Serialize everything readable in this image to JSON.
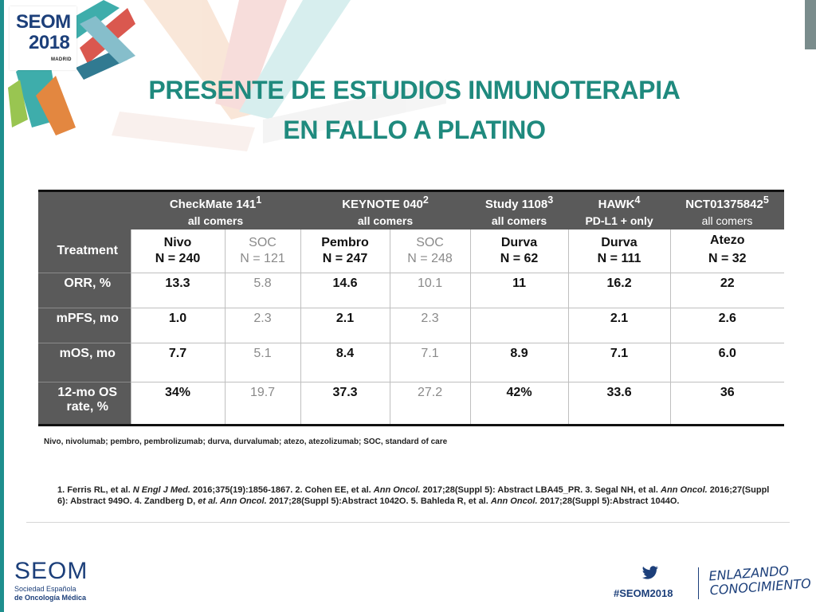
{
  "logo": {
    "brand": "SEOM",
    "year": "2018",
    "city": "MADRID"
  },
  "title": {
    "line1": "PRESENTE DE ESTUDIOS INMUNOTERAPIA",
    "line2": "EN FALLO A PLATINO"
  },
  "table": {
    "treatment_label": "Treatment",
    "studies": [
      {
        "name": "CheckMate 141",
        "sup": "1",
        "population": "all comers"
      },
      {
        "name": "KEYNOTE 040",
        "sup": "2",
        "population": "all comers"
      },
      {
        "name": "Study 1108",
        "sup": "3",
        "population": "all comers"
      },
      {
        "name": "HAWK",
        "sup": "4",
        "population": "PD-L1 + only"
      },
      {
        "name": "NCT01375842",
        "sup": "5",
        "population": "all comers"
      }
    ],
    "arms": [
      {
        "drug": "Nivo",
        "n": "N = 240"
      },
      {
        "drug": "SOC",
        "n": "N = 121"
      },
      {
        "drug": "Pembro",
        "n": "N = 247"
      },
      {
        "drug": "SOC",
        "n": "N = 248"
      },
      {
        "drug": "Durva",
        "n": "N = 62"
      },
      {
        "drug": "Durva",
        "n": "N = 111"
      },
      {
        "drug": "Atezo",
        "n": "N = 32"
      }
    ],
    "rows": [
      {
        "label": "ORR, %",
        "values": [
          "13.3",
          "5.8",
          "14.6",
          "10.1",
          "11",
          "16.2",
          "22"
        ]
      },
      {
        "label": "mPFS, mo",
        "values": [
          "1.0",
          "2.3",
          "2.1",
          "2.3",
          "",
          "2.1",
          "2.6"
        ]
      },
      {
        "label": "mOS, mo",
        "values": [
          "7.7",
          "5.1",
          "8.4",
          "7.1",
          "8.9",
          "7.1",
          "6.0"
        ]
      },
      {
        "label_line1": "12-mo OS",
        "label_line2": "rate, %",
        "values": [
          "34%",
          "19.7",
          "37.3",
          "27.2",
          "42%",
          "33.6",
          "36"
        ]
      }
    ]
  },
  "abbreviations": "Nivo, nivolumab; pembro, pembrolizumab; durva, durvalumab; atezo, atezolizumab; SOC, standard of care",
  "references": {
    "r1a": "1. Ferris RL, et al. ",
    "r1j": "N Engl J Med.",
    "r1b": " 2016;375(19):1856-1867. 2. Cohen EE, et al. ",
    "r2j": "Ann Oncol.",
    "r2b": " 2017;28(Suppl 5): Abstract LBA45_PR. 3. Segal NH, et al. ",
    "r3j": "Ann Oncol.",
    "r3b": " 2016;27(Suppl 6): Abstract 949O. 4. Zandberg D, ",
    "r4e": "et al. Ann Oncol.",
    "r4b": " 2017;28(Suppl 5):Abstract 1042O. 5. Bahleda R, et al. ",
    "r5j": "Ann Oncol.",
    "r5b": " 2017;28(Suppl 5):Abstract 1044O."
  },
  "footer": {
    "brand": "SEOM",
    "sub1": "Sociedad Española",
    "sub2": "de Oncología Médica",
    "hashtag": "#SEOM2018",
    "slogan1": "ENLAZANDO",
    "slogan2": "CONOCIMIENTO"
  },
  "colors": {
    "title": "#1f8a7e",
    "header_bg": "#5a5a5a",
    "brand_blue": "#1c3f7a",
    "accent_teal": "#1e8f8e"
  }
}
